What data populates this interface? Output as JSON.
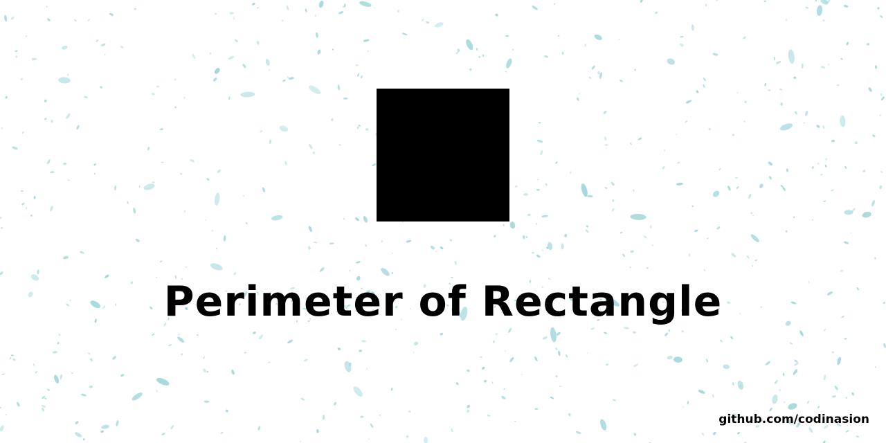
{
  "banner": {
    "title": "Perimeter of Rectangle",
    "credit": "github.com/codinasion"
  },
  "colors": {
    "background": "#ffffff",
    "speckle": "#9fd6da",
    "shape": "#000000",
    "text": "#000000"
  },
  "icons": {
    "shape": "black-square"
  }
}
